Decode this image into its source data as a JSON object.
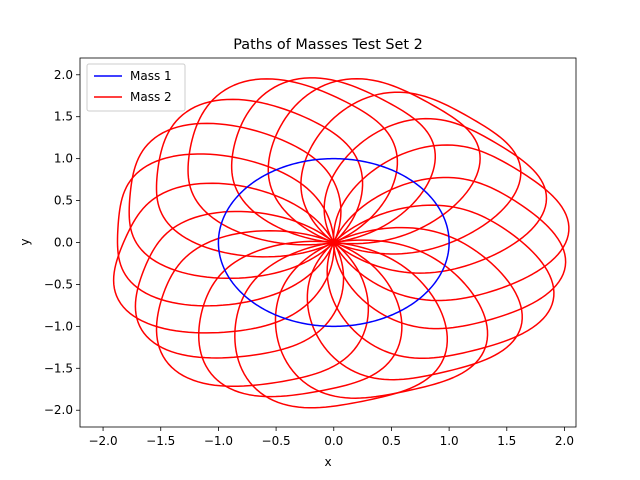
{
  "chart_data": {
    "type": "line",
    "title": "Paths of Masses Test Set 2",
    "xlabel": "x",
    "ylabel": "y",
    "xlim": [
      -2.2,
      2.1
    ],
    "ylim": [
      -2.2,
      2.2
    ],
    "xticks": [
      -2.0,
      -1.5,
      -1.0,
      -0.5,
      0.0,
      0.5,
      1.0,
      1.5,
      2.0
    ],
    "xtick_labels": [
      "−2.0",
      "−1.5",
      "−1.0",
      "−0.5",
      "0.0",
      "0.5",
      "1.0",
      "1.5",
      "2.0"
    ],
    "yticks": [
      -2.0,
      -1.5,
      -1.0,
      -0.5,
      0.0,
      0.5,
      1.0,
      1.5,
      2.0
    ],
    "ytick_labels": [
      "−2.0",
      "−1.5",
      "−1.0",
      "−0.5",
      "0.0",
      "0.5",
      "1.0",
      "1.5",
      "2.0"
    ],
    "grid": false,
    "legend_position": "top-left",
    "series": [
      {
        "name": "Mass 1",
        "color": "#0000ff",
        "shape": "circle",
        "center": [
          0.0,
          0.0
        ],
        "radius": 1.0
      },
      {
        "name": "Mass 2",
        "color": "#ff0000",
        "shape": "rosette",
        "center": [
          0.0,
          0.0
        ],
        "max_radius": 2.0,
        "petal_angles_deg": [
          -168,
          -148,
          -128,
          -108,
          -88,
          -68,
          -48,
          -28,
          -8,
          12,
          32,
          52,
          72,
          92,
          112,
          132,
          152,
          172
        ],
        "petal_reach": [
          1.95,
          1.9,
          1.98,
          1.92,
          2.0,
          1.96,
          1.93,
          1.97,
          1.95,
          1.99,
          1.94,
          1.98,
          1.96,
          1.92,
          1.99,
          1.95,
          1.97,
          1.96
        ],
        "petal_width": 0.9
      }
    ]
  }
}
